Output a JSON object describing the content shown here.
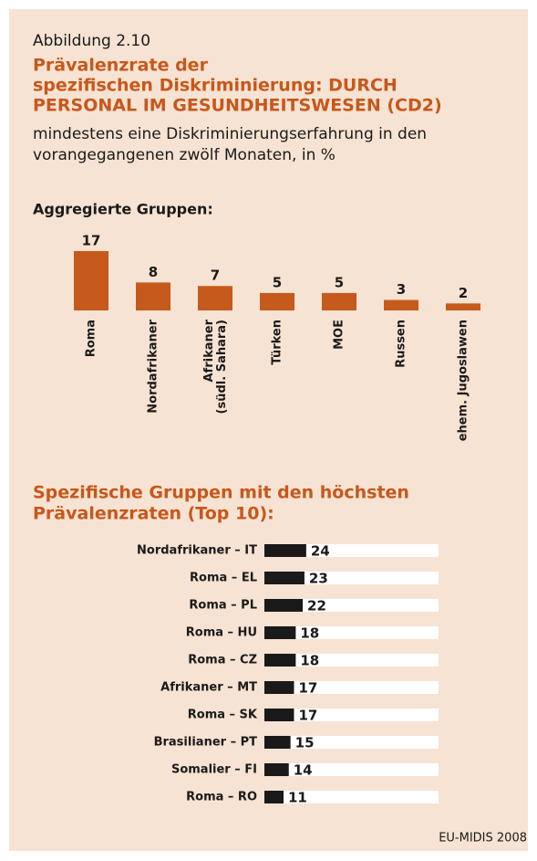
{
  "header": {
    "label": "Abbildung 2.10",
    "title": [
      "Prävalenzrate der",
      "spezifischen Diskriminierung: DURCH",
      "PERSONAL IM GESUNDHEITSWESEN (CD2)"
    ],
    "subtitle": [
      "mindestens eine Diskriminierungserfahrung in den",
      "vorangegangenen zwölf Monaten, in %"
    ]
  },
  "chart_data": [
    {
      "type": "bar",
      "title": "Aggregierte Gruppen:",
      "categories": [
        "Roma",
        "Nordafrikaner",
        "Afrikaner (südl. Sahara)",
        "Türken",
        "MOE",
        "Russen",
        "ehem. Jugoslawen"
      ],
      "values": [
        17,
        8,
        7,
        5,
        5,
        3,
        2
      ],
      "color": "#c55a1c",
      "ylim": [
        0,
        17
      ]
    },
    {
      "type": "hbar",
      "title": [
        "Spezifische Gruppen mit den höchsten",
        "Prävalenzraten (Top 10):"
      ],
      "categories": [
        "Nordafrikaner – IT",
        "Roma – EL",
        "Roma – PL",
        "Roma – HU",
        "Roma – CZ",
        "Afrikaner – MT",
        "Roma – SK",
        "Brasilianer – PT",
        "Somalier – FI",
        "Roma – RO"
      ],
      "values": [
        24,
        23,
        22,
        18,
        18,
        17,
        17,
        15,
        14,
        11
      ],
      "color": "#1a1a1a",
      "track_color": "#ffffff",
      "xlim": [
        0,
        100
      ]
    }
  ],
  "source": "EU-MIDIS 2008"
}
